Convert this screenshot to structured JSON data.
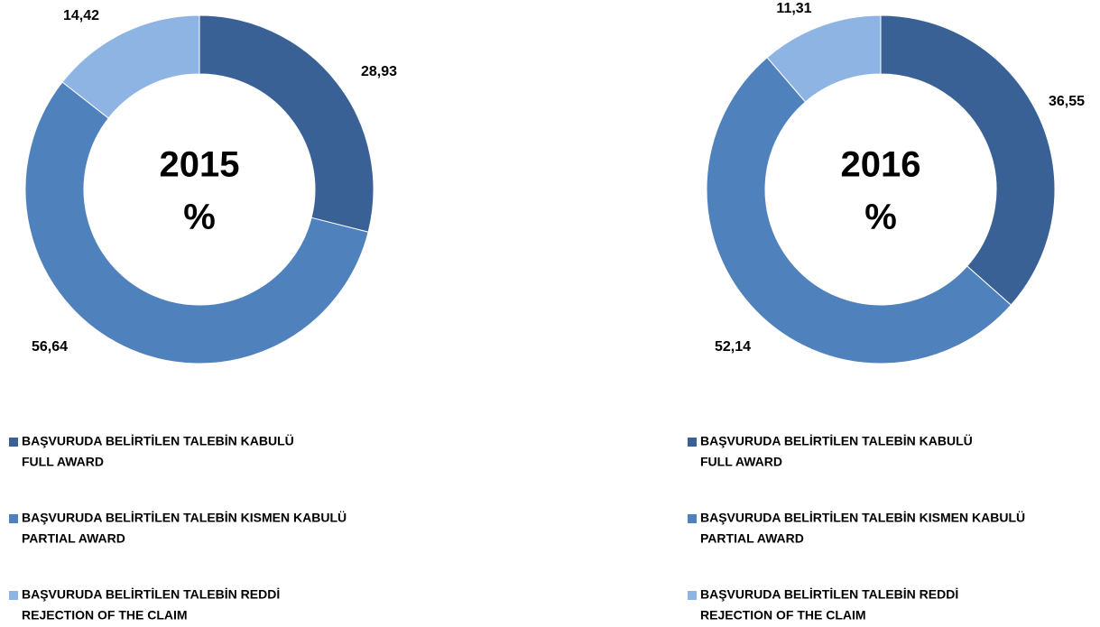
{
  "chart_data": [
    {
      "type": "pie",
      "title": "2015",
      "subtitle": "%",
      "categories": [
        "BAŞVURUDA BELİRTİLEN TALEBİN KABULÜ",
        "BAŞVURUDA BELİRTİLEN TALEBİN KISMEN KABULÜ",
        "BAŞVURUDA BELİRTİLEN TALEBİN REDDİ"
      ],
      "categories_en": [
        "FULL AWARD",
        "PARTIAL AWARD",
        "REJECTION OF THE CLAIM"
      ],
      "values": [
        28.93,
        56.64,
        14.42
      ],
      "value_labels": [
        "28,93",
        "56,64",
        "14,42"
      ],
      "colors": [
        "#3a6196",
        "#4f81bd",
        "#8eb4e3"
      ]
    },
    {
      "type": "pie",
      "title": "2016",
      "subtitle": "%",
      "categories": [
        "BAŞVURUDA BELİRTİLEN TALEBİN KABULÜ",
        "BAŞVURUDA BELİRTİLEN TALEBİN KISMEN KABULÜ",
        "BAŞVURUDA BELİRTİLEN TALEBİN REDDİ"
      ],
      "categories_en": [
        "FULL AWARD",
        "PARTIAL AWARD",
        "REJECTION OF THE CLAIM"
      ],
      "values": [
        36.55,
        52.14,
        11.31
      ],
      "value_labels": [
        "36,55",
        "52,14",
        "11,31"
      ],
      "colors": [
        "#3a6196",
        "#4f81bd",
        "#8eb4e3"
      ]
    }
  ]
}
